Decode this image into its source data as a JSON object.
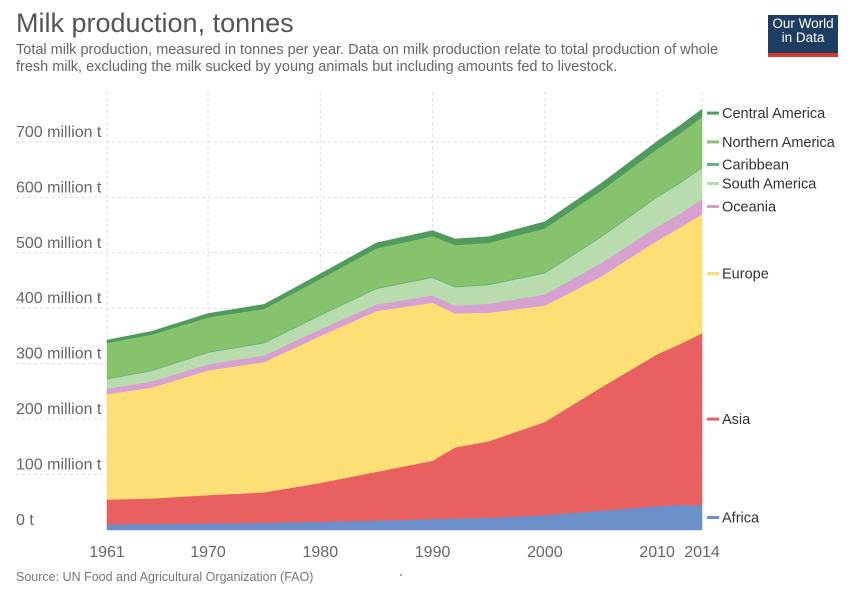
{
  "title": "Milk production, tonnes",
  "subtitle": "Total milk production, measured in tonnes per year. Data on milk production relate to total production of whole fresh milk, excluding the milk sucked by young animals but including amounts fed to livestock.",
  "logo": {
    "line1": "Our World",
    "line2": "in Data"
  },
  "source": "Source: UN Food and Agricultural Organization (FAO)",
  "chart_data": {
    "type": "area",
    "stacked": true,
    "x": [
      1961,
      1965,
      1970,
      1975,
      1980,
      1985,
      1990,
      1992,
      1995,
      2000,
      2005,
      2010,
      2012,
      2014
    ],
    "x_ticks": [
      "1961",
      "1970",
      "1980",
      "1990",
      "2000",
      "2010",
      "2014"
    ],
    "y_ticks": [
      "0 t",
      "100 million t",
      "200 million t",
      "300 million t",
      "400 million t",
      "500 million t",
      "600 million t",
      "700 million t"
    ],
    "ylim": [
      0,
      790
    ],
    "grid": true,
    "series": [
      {
        "name": "Africa",
        "color": "#6b8fc9",
        "values": [
          10,
          11,
          12,
          13,
          15,
          17,
          20,
          21,
          22,
          27,
          35,
          43,
          45,
          45
        ]
      },
      {
        "name": "Asia",
        "color": "#e8605f",
        "values": [
          45,
          46,
          51,
          55,
          70,
          88,
          105,
          128,
          138,
          168,
          222,
          274,
          290,
          310
        ]
      },
      {
        "name": "Europe",
        "color": "#fddf75",
        "values": [
          190,
          200,
          225,
          235,
          265,
          290,
          285,
          242,
          232,
          210,
          200,
          205,
          210,
          215
        ]
      },
      {
        "name": "Oceania",
        "color": "#d6a0d0",
        "values": [
          10,
          11,
          11,
          12,
          12,
          12,
          13,
          14,
          16,
          20,
          24,
          25,
          25,
          27
        ]
      },
      {
        "name": "South America",
        "color": "#b8dcae",
        "values": [
          17,
          19,
          21,
          22,
          25,
          28,
          32,
          33,
          34,
          38,
          47,
          53,
          55,
          56
        ]
      },
      {
        "name": "Caribbean",
        "color": "#6ab27c",
        "values": [
          1.5,
          1.5,
          1.5,
          2,
          2,
          2,
          2,
          2,
          2,
          2,
          2,
          2,
          2,
          2
        ]
      },
      {
        "name": "Northern America",
        "color": "#87c36c",
        "values": [
          64,
          64,
          62,
          60,
          64,
          71,
          73,
          74,
          74,
          79,
          82,
          85,
          88,
          90
        ]
      },
      {
        "name": "Central America",
        "color": "#4f9a5c",
        "values": [
          5,
          6,
          7,
          8,
          9,
          10,
          10,
          11,
          11,
          12,
          13,
          14,
          14,
          14
        ]
      }
    ]
  }
}
